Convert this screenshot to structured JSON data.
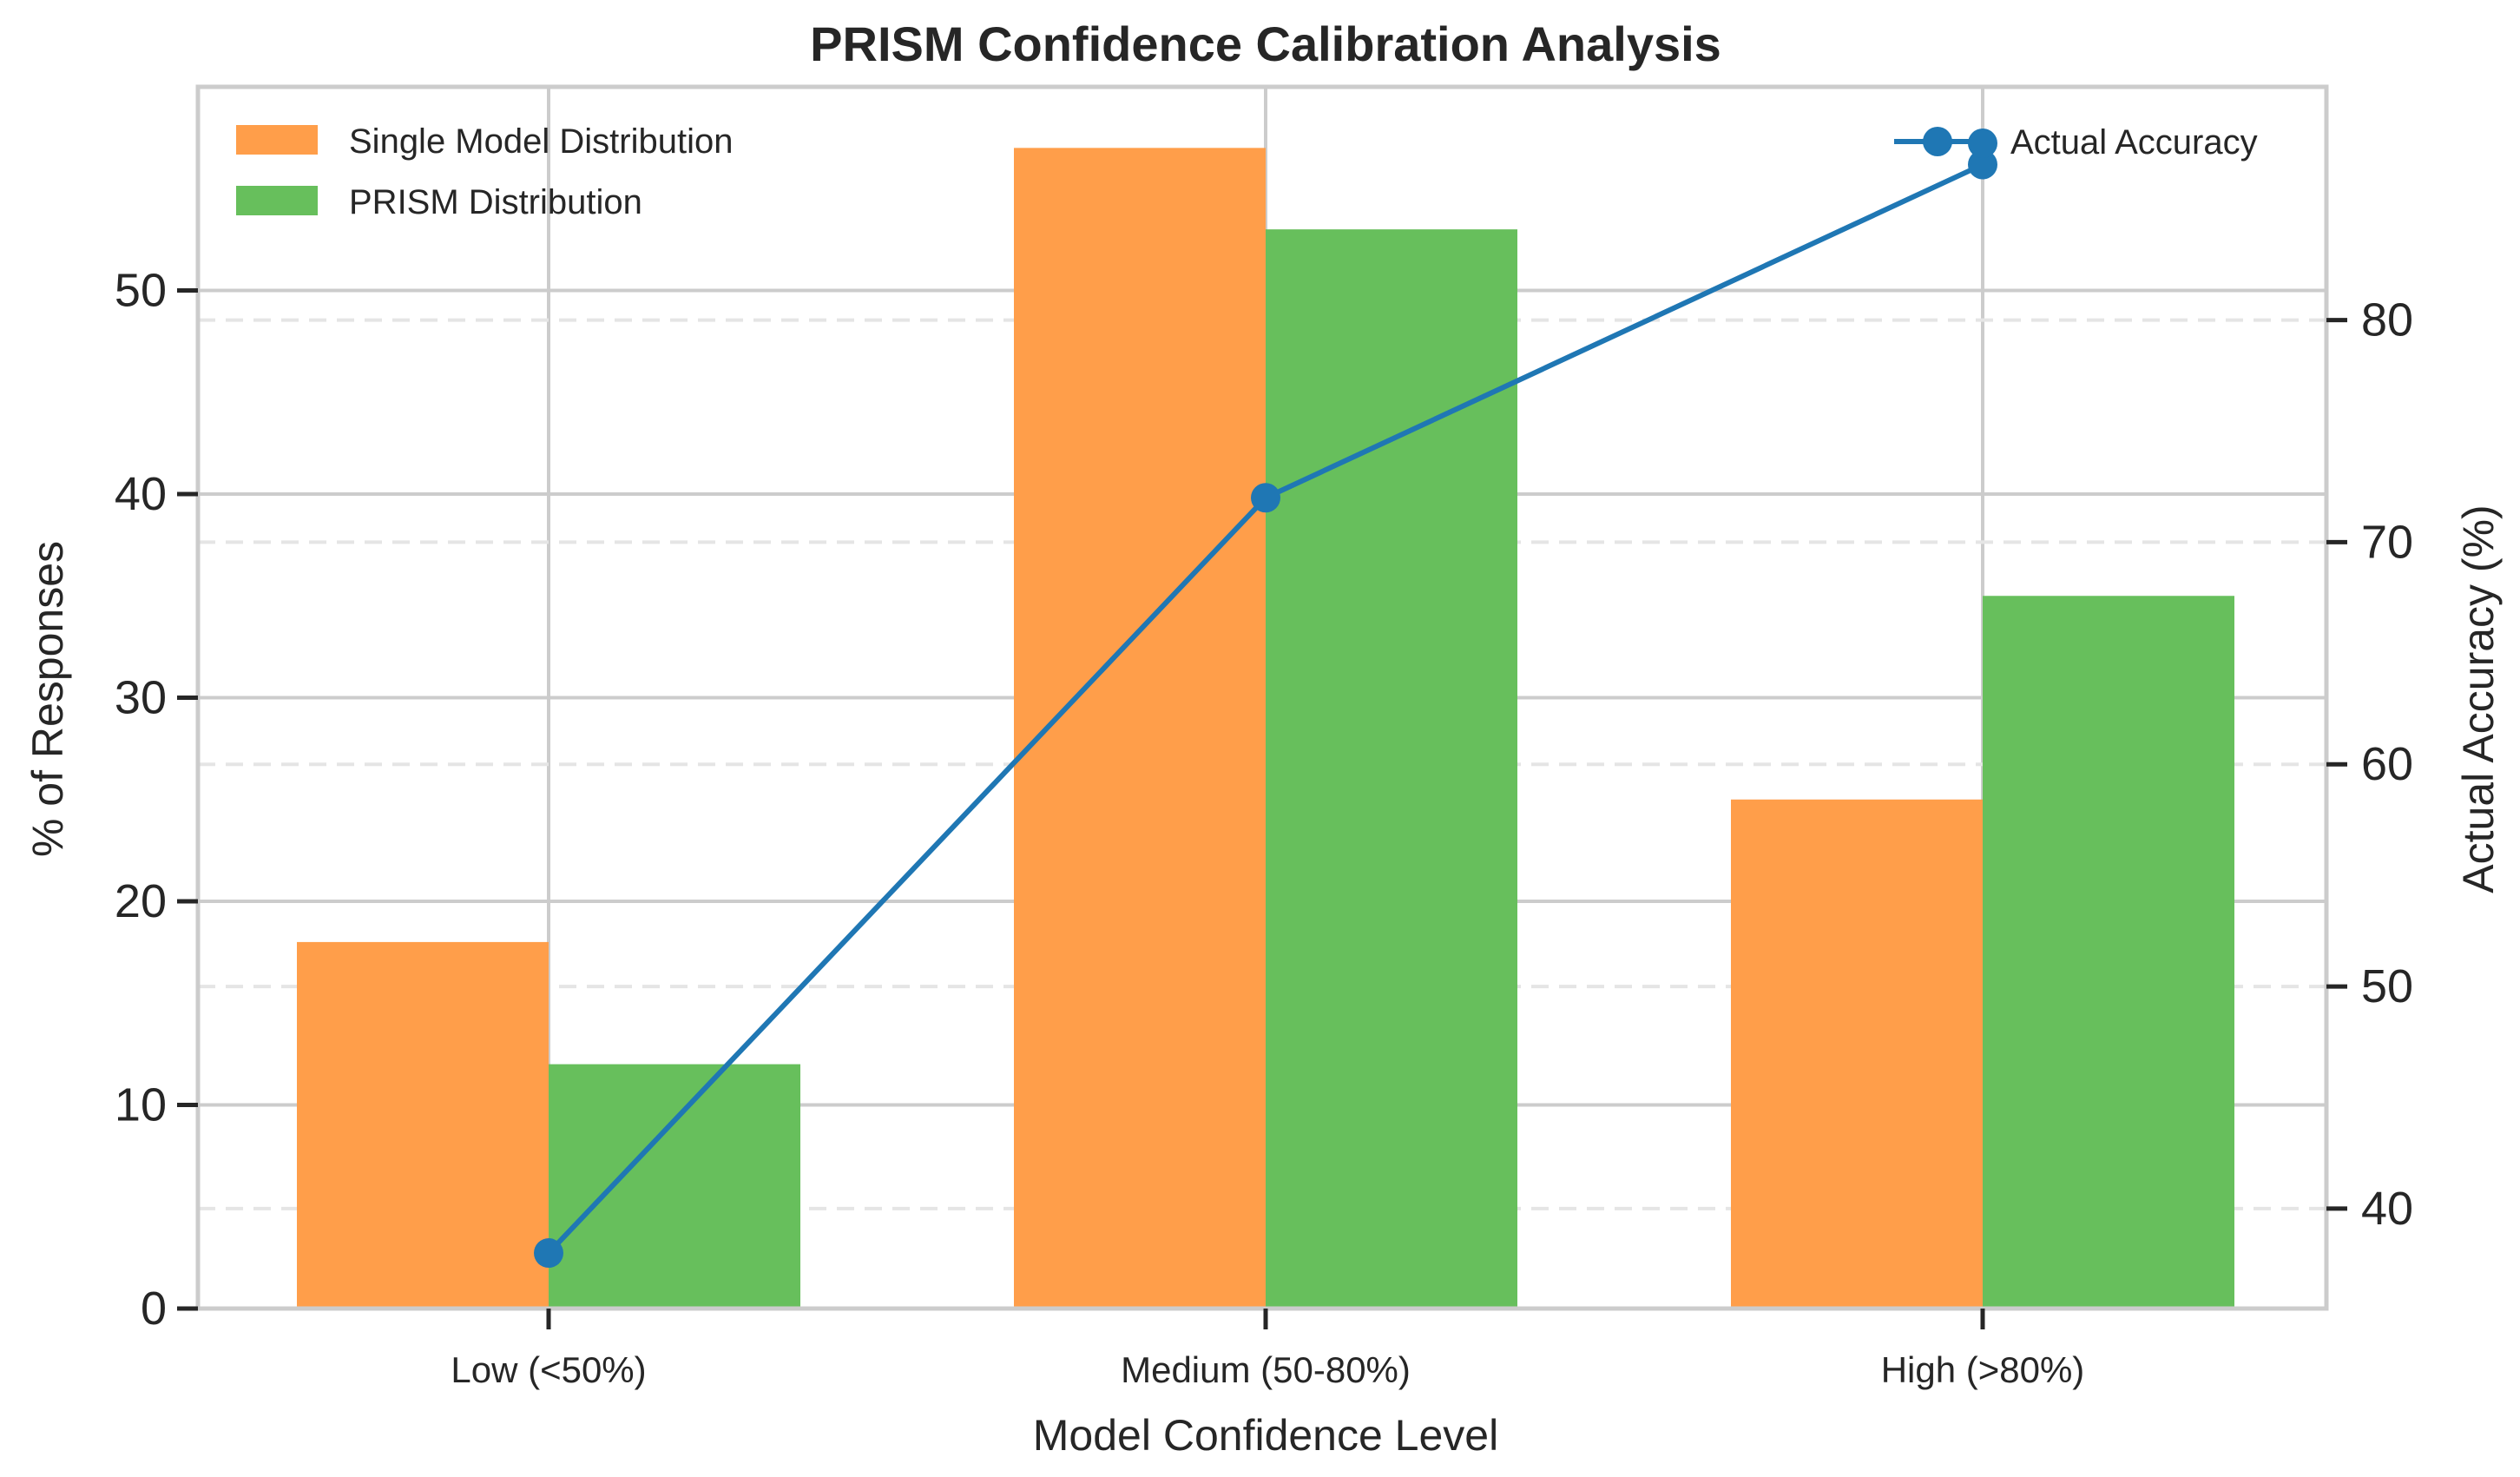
{
  "chart_data": {
    "type": "bar",
    "title": "PRISM Confidence Calibration Analysis",
    "xlabel": "Model Confidence Level",
    "ylabel": "% of Responses",
    "y2label": "Actual Accuracy (%)",
    "categories": [
      "Low (<50%)",
      "Medium (50-80%)",
      "High (>80%)"
    ],
    "series": [
      {
        "name": "Single Model Distribution",
        "type": "bar",
        "axis": "left",
        "color": "#ff9e4a",
        "values": [
          18,
          57,
          25
        ]
      },
      {
        "name": "PRISM Distribution",
        "type": "bar",
        "axis": "left",
        "color": "#67bf5c",
        "values": [
          12,
          53,
          35
        ]
      },
      {
        "name": "Actual Accuracy",
        "type": "line",
        "axis": "right",
        "color": "#1f77b4",
        "values": [
          38,
          72,
          87
        ]
      }
    ],
    "ylim": [
      0,
      60
    ],
    "y2lim": [
      35.5,
      90.5
    ],
    "yticks": [
      0,
      10,
      20,
      30,
      40,
      50
    ],
    "y2ticks": [
      40,
      50,
      60,
      70,
      80
    ],
    "grid": true,
    "legend_left": "top-left",
    "legend_right": "top-right"
  }
}
